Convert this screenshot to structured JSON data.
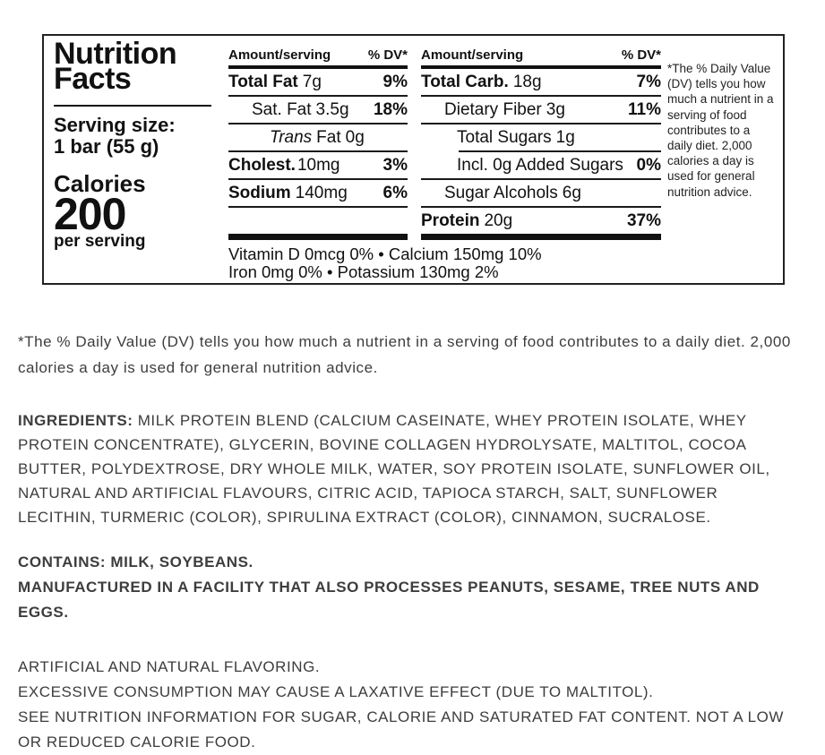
{
  "label": {
    "title_line1": "Nutrition",
    "title_line2": "Facts",
    "serving_size_label": "Serving size:",
    "serving_size_value": "1 bar (55 g)",
    "calories_label": "Calories",
    "calories_value": "200",
    "calories_unit": "per serving",
    "columns": [
      {
        "header_amount": "Amount/serving",
        "header_dv": "% DV*",
        "rows": [
          {
            "name": "Total Fat",
            "amount": "7g",
            "dv": "9%"
          },
          {
            "name": "Sat. Fat",
            "amount": "3.5g",
            "dv": "18%"
          },
          {
            "name_italic": "Trans",
            "name": "Fat",
            "amount": "0g",
            "dv": ""
          },
          {
            "name": "Cholest.",
            "amount": "10mg",
            "dv": "3%"
          },
          {
            "name": "Sodium",
            "amount": "140mg",
            "dv": "6%"
          }
        ]
      },
      {
        "header_amount": "Amount/serving",
        "header_dv": "% DV*",
        "rows": [
          {
            "name": "Total Carb.",
            "amount": "18g",
            "dv": "7%"
          },
          {
            "name": "Dietary Fiber",
            "amount": "3g",
            "dv": "11%"
          },
          {
            "name": "Total Sugars",
            "amount": "1g",
            "dv": ""
          },
          {
            "name": "Incl. 0g Added Sugars",
            "amount": "",
            "dv": "0%"
          },
          {
            "name": "Sugar Alcohols",
            "amount": "6g",
            "dv": ""
          },
          {
            "name": "Protein",
            "amount": "20g",
            "dv": "37%"
          }
        ]
      }
    ],
    "micronutrients_line1": "Vitamin D 0mcg 0%  •  Calcium 150mg 10%",
    "micronutrients_line2": "Iron 0mg 0%  •  Potassium 130mg 2%",
    "dv_footnote": "*The % Daily Value (DV) tells you how much a nutrient in a serving of food contributes to a daily diet. 2,000 calories a day is used for general nutrition advice."
  },
  "body": {
    "dv_note": "*The % Daily Value (DV) tells you how much a nutrient in a serving of food contributes to a daily diet. 2,000 calories a day is used for general nutrition advice.",
    "ingredients_label": "INGREDIENTS:",
    "ingredients_text": " MILK PROTEIN BLEND (CALCIUM CASEINATE, WHEY PROTEIN ISOLATE, WHEY PROTEIN CONCENTRATE), GLYCERIN, BOVINE COLLAGEN HYDROLYSATE, MALTITOL, COCOA BUTTER, POLYDEXTROSE, DRY WHOLE MILK, WATER, SOY PROTEIN ISOLATE, SUNFLOWER OIL, NATURAL AND ARTIFICIAL FLAVOURS, CITRIC ACID, TAPIOCA STARCH, SALT, SUNFLOWER LECITHIN, TURMERIC (COLOR), SPIRULINA EXTRACT (COLOR), CINNAMON, SUCRALOSE.",
    "contains": "CONTAINS: MILK, SOYBEANS.",
    "facility": "MANUFACTURED IN A FACILITY THAT ALSO PROCESSES PEANUTS, SESAME, TREE NUTS AND EGGS.",
    "flavoring": "ARTIFICIAL AND NATURAL FLAVORING.",
    "laxative": "EXCESSIVE CONSUMPTION MAY CAUSE A LAXATIVE EFFECT (DUE TO MALTITOL).",
    "see_nutrition": "SEE NUTRITION INFORMATION FOR SUGAR, CALORIE AND SATURATED FAT CONTENT. NOT A LOW OR REDUCED CALORIE FOOD."
  },
  "colors": {
    "label_text": "#111111",
    "body_text": "#3d3d3d",
    "border": "#222222"
  }
}
